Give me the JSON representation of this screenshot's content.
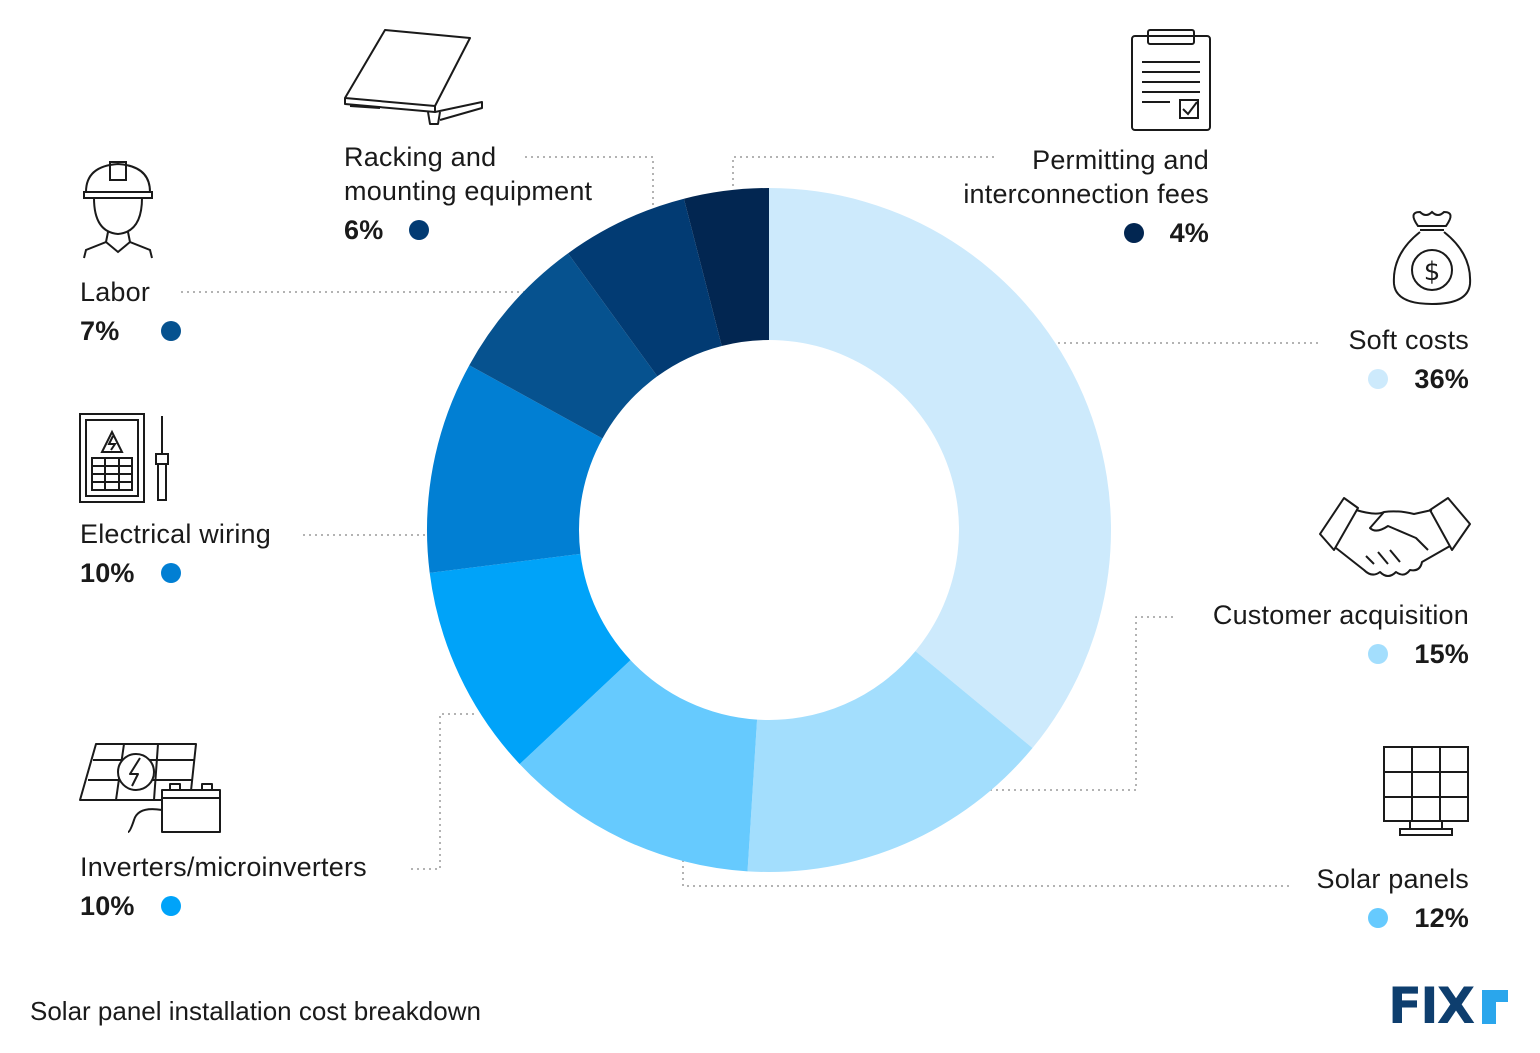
{
  "chart_data": {
    "type": "pie",
    "title": "",
    "caption": "Solar panel installation cost breakdown",
    "slices": [
      {
        "label": "Soft costs",
        "value": 36,
        "pct_label": "36%",
        "color": "#cdeafc"
      },
      {
        "label": "Customer acquisition",
        "value": 15,
        "pct_label": "15%",
        "color": "#a3defd"
      },
      {
        "label": "Solar panels",
        "value": 12,
        "pct_label": "12%",
        "color": "#66cafe"
      },
      {
        "label": "Inverters/microinverters",
        "value": 10,
        "pct_label": "10%",
        "color": "#00a3f9"
      },
      {
        "label": "Electrical wiring",
        "value": 10,
        "pct_label": "10%",
        "color": "#017fd3"
      },
      {
        "label": "Labor",
        "value": 7,
        "pct_label": "7%",
        "color": "#06528f"
      },
      {
        "label": "Racking and\nmounting equipment",
        "value": 6,
        "pct_label": "6%",
        "color": "#023b73"
      },
      {
        "label": "Permitting and\ninterconnection fees",
        "value": 4,
        "pct_label": "4%",
        "color": "#022651"
      }
    ]
  },
  "brand": {
    "logo_text": "FIXR",
    "logo_color": "#0e3e6e",
    "accent_color": "#2aa6ec"
  },
  "icons": {
    "soft": "money-bag-icon",
    "acquisition": "handshake-icon",
    "panels": "solar-panel-icon",
    "inverters": "inverter-battery-icon",
    "wiring": "electrical-panel-icon",
    "labor": "worker-hardhat-icon",
    "racking": "mounted-panel-icon",
    "permitting": "clipboard-checklist-icon"
  }
}
